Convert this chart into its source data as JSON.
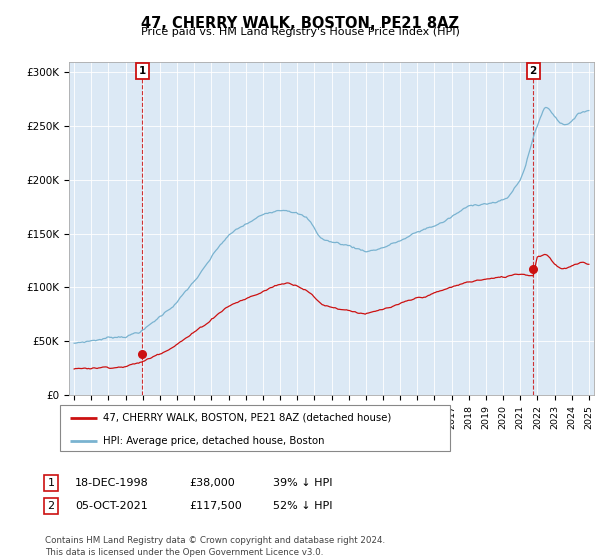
{
  "title": "47, CHERRY WALK, BOSTON, PE21 8AZ",
  "subtitle": "Price paid vs. HM Land Registry's House Price Index (HPI)",
  "ylabel_ticks": [
    "£0",
    "£50K",
    "£100K",
    "£150K",
    "£200K",
    "£250K",
    "£300K"
  ],
  "ytick_values": [
    0,
    50000,
    100000,
    150000,
    200000,
    250000,
    300000
  ],
  "ylim": [
    0,
    310000
  ],
  "xlim_start": 1994.7,
  "xlim_end": 2025.3,
  "hpi_color": "#7ab3d0",
  "price_color": "#cc1111",
  "point1_x": 1998.96,
  "point1_y": 38000,
  "point2_x": 2021.75,
  "point2_y": 117500,
  "legend_label1": "47, CHERRY WALK, BOSTON, PE21 8AZ (detached house)",
  "legend_label2": "HPI: Average price, detached house, Boston",
  "table_row1": [
    "1",
    "18-DEC-1998",
    "£38,000",
    "39% ↓ HPI"
  ],
  "table_row2": [
    "2",
    "05-OCT-2021",
    "£117,500",
    "52% ↓ HPI"
  ],
  "footer": "Contains HM Land Registry data © Crown copyright and database right 2024.\nThis data is licensed under the Open Government Licence v3.0.",
  "bg_color": "#dce9f5",
  "plot_bg": "#dce9f5"
}
